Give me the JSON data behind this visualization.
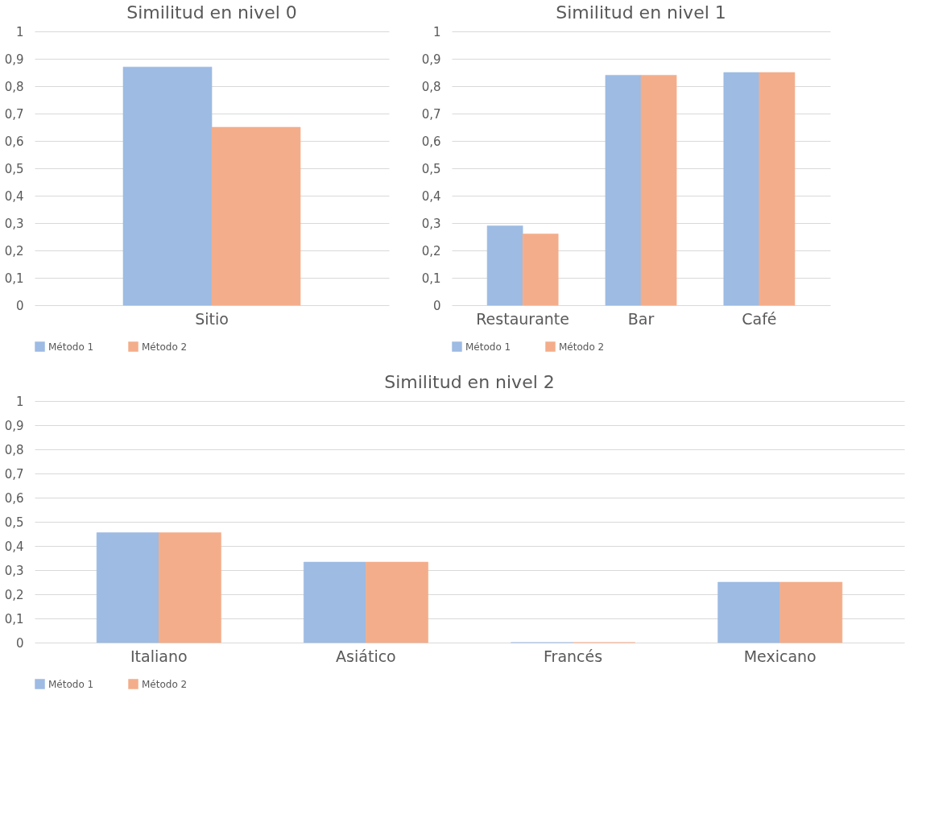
{
  "chart_data": [
    {
      "type": "bar",
      "title": "Similitud en nivel 0",
      "categories": [
        "Sitio"
      ],
      "series": [
        {
          "name": "Método 1",
          "color": "#9dbbe3",
          "values": [
            0.87
          ]
        },
        {
          "name": "Método 2",
          "color": "#f4ad8a",
          "values": [
            0.65
          ]
        }
      ],
      "ylim": [
        0,
        1
      ],
      "yticks": [
        0,
        {
          "value": 0.1,
          "label": "0,1"
        },
        {
          "value": 0.2,
          "label": "0,2"
        },
        {
          "value": 0.3,
          "label": "0,3"
        },
        {
          "value": 0.4,
          "label": "0,4"
        },
        {
          "value": 0.5,
          "label": "0,5"
        },
        {
          "value": 0.6,
          "label": "0,6"
        },
        {
          "value": 0.7,
          "label": "0,7"
        },
        {
          "value": 0.8,
          "label": "0,8"
        },
        {
          "value": 0.9,
          "label": "0,9"
        },
        1
      ],
      "grid": "y",
      "legend": "bottom"
    },
    {
      "type": "bar",
      "title": "Similitud en nivel 1",
      "categories": [
        "Restaurante",
        "Bar",
        "Café"
      ],
      "series": [
        {
          "name": "Método 1",
          "color": "#9dbbe3",
          "values": [
            0.29,
            0.84,
            0.85
          ]
        },
        {
          "name": "Método 2",
          "color": "#f4ad8a",
          "values": [
            0.26,
            0.84,
            0.85
          ]
        }
      ],
      "ylim": [
        0,
        1
      ],
      "yticks": [
        0,
        {
          "value": 0.1,
          "label": "0,1"
        },
        {
          "value": 0.2,
          "label": "0,2"
        },
        {
          "value": 0.3,
          "label": "0,3"
        },
        {
          "value": 0.4,
          "label": "0,4"
        },
        {
          "value": 0.5,
          "label": "0,5"
        },
        {
          "value": 0.6,
          "label": "0,6"
        },
        {
          "value": 0.7,
          "label": "0,7"
        },
        {
          "value": 0.8,
          "label": "0,8"
        },
        {
          "value": 0.9,
          "label": "0,9"
        },
        1
      ],
      "grid": "y",
      "legend": "bottom"
    },
    {
      "type": "bar",
      "title": "Similitud en nivel 2",
      "categories": [
        "Italiano",
        "Asiático",
        "Francés",
        "Mexicano"
      ],
      "series": [
        {
          "name": "Método 1",
          "color": "#9dbbe3",
          "values": [
            0.455,
            0.333,
            0,
            0.25
          ]
        },
        {
          "name": "Método 2",
          "color": "#f4ad8a",
          "values": [
            0.455,
            0.333,
            0,
            0.25
          ]
        }
      ],
      "ylim": [
        0,
        1
      ],
      "yticks": [
        0,
        {
          "value": 0.1,
          "label": "0,1"
        },
        {
          "value": 0.2,
          "label": "0,2"
        },
        {
          "value": 0.3,
          "label": "0,3"
        },
        {
          "value": 0.4,
          "label": "0,4"
        },
        {
          "value": 0.5,
          "label": "0,5"
        },
        {
          "value": 0.6,
          "label": "0,6"
        },
        {
          "value": 0.7,
          "label": "0,7"
        },
        {
          "value": 0.8,
          "label": "0,8"
        },
        {
          "value": 0.9,
          "label": "0,9"
        },
        1
      ],
      "grid": "y",
      "legend": "bottom"
    }
  ]
}
